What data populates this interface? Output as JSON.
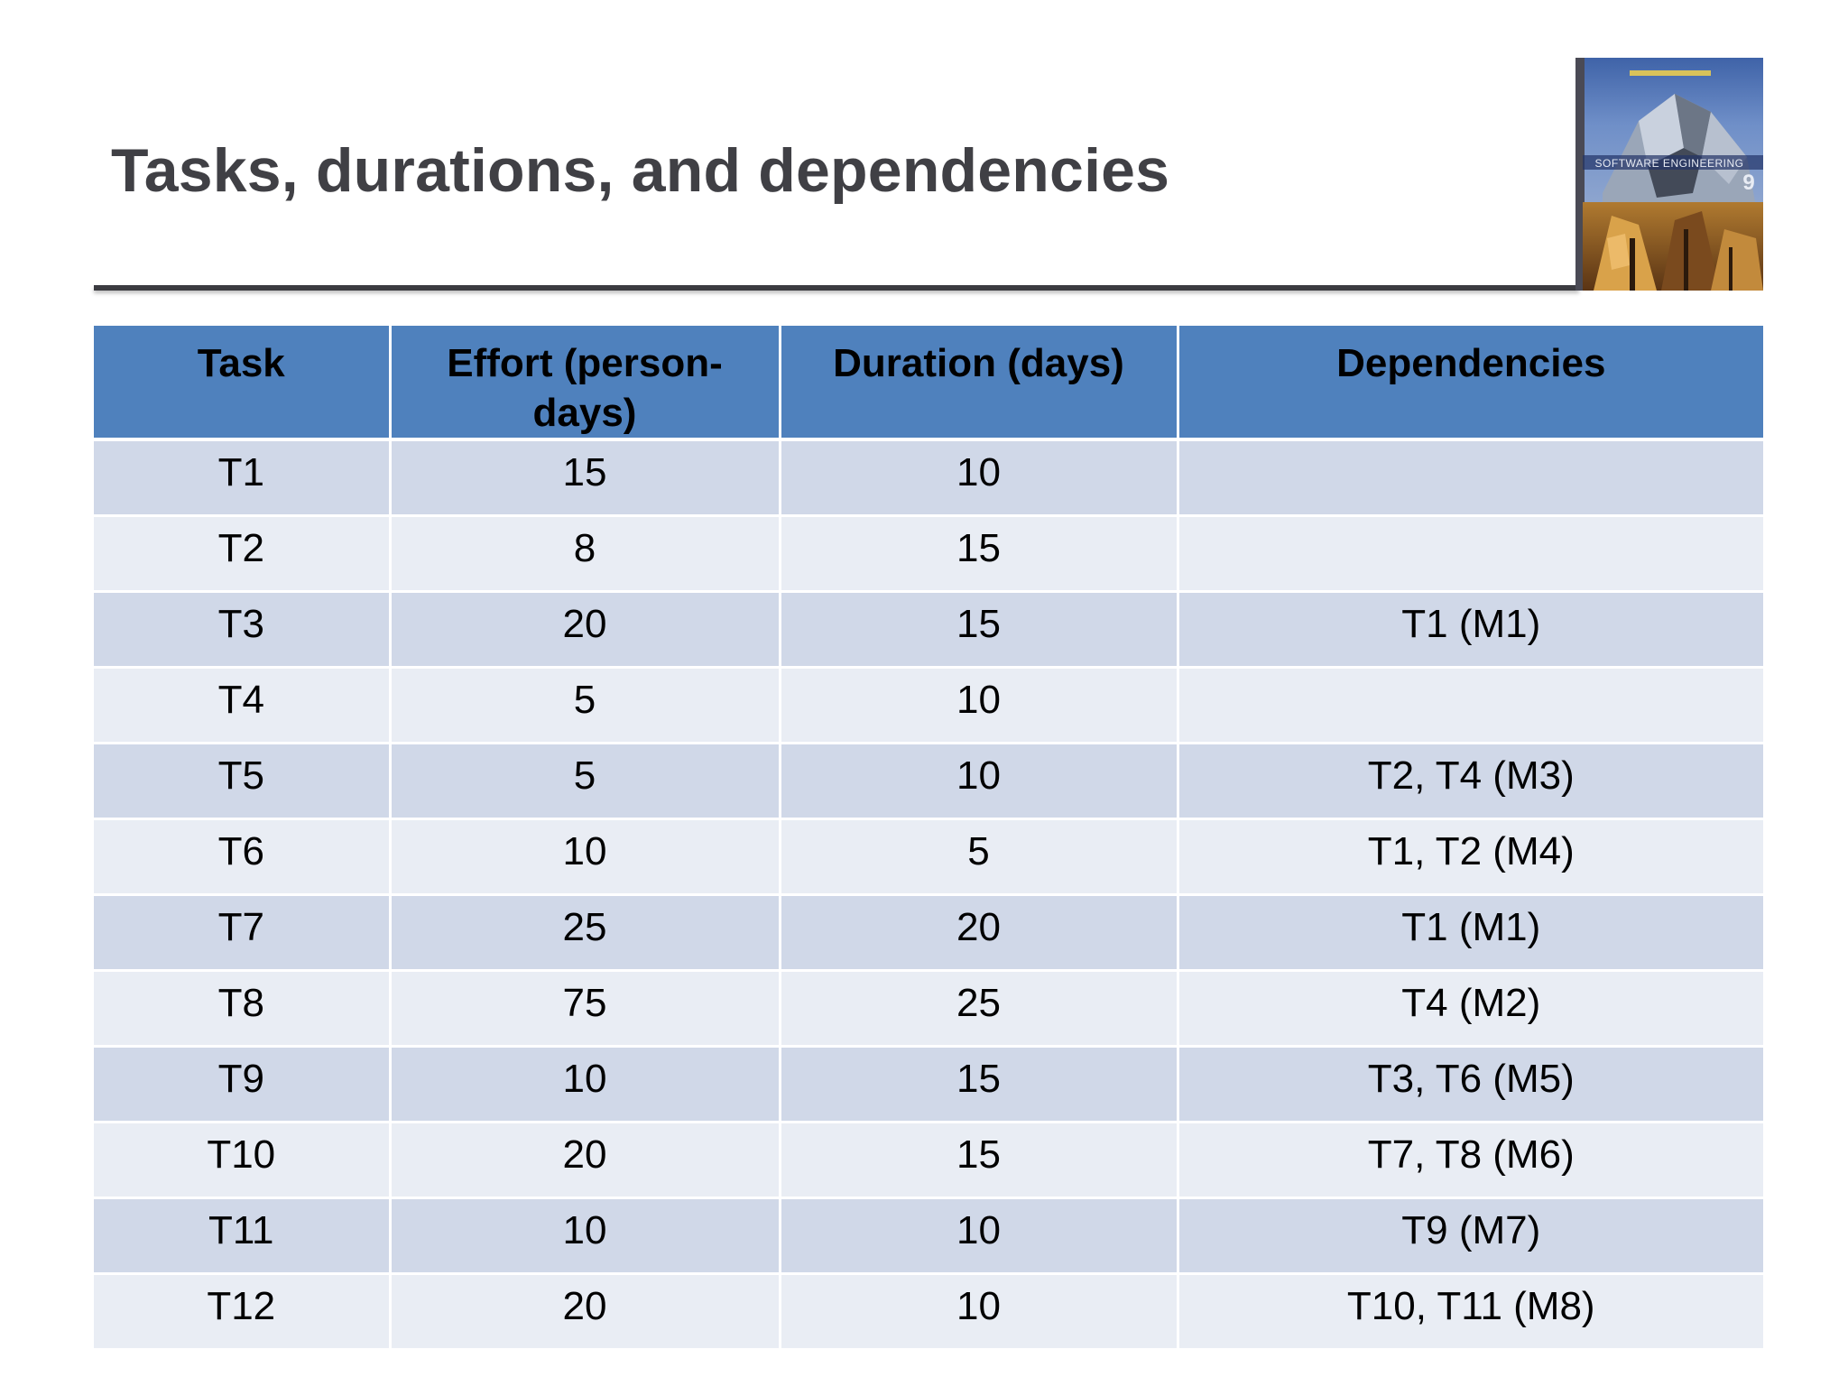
{
  "slide": {
    "title": "Tasks, durations, and dependencies"
  },
  "book_cover": {
    "icon": "book-cover-image",
    "cover_text": "SOFTWARE ENGINEERING",
    "edition": "9"
  },
  "table": {
    "headers": [
      "Task",
      "Effort (person-days)",
      "Duration (days)",
      "Dependencies"
    ],
    "rows": [
      [
        "T1",
        "15",
        "10",
        ""
      ],
      [
        "T2",
        "8",
        "15",
        ""
      ],
      [
        "T3",
        "20",
        "15",
        "T1 (M1)"
      ],
      [
        "T4",
        "5",
        "10",
        ""
      ],
      [
        "T5",
        "5",
        "10",
        "T2, T4 (M3)"
      ],
      [
        "T6",
        "10",
        "5",
        "T1, T2 (M4)"
      ],
      [
        "T7",
        "25",
        "20",
        "T1 (M1)"
      ],
      [
        "T8",
        "75",
        "25",
        "T4 (M2)"
      ],
      [
        "T9",
        "10",
        "15",
        "T3, T6 (M5)"
      ],
      [
        "T10",
        "20",
        "15",
        "T7, T8 (M6)"
      ],
      [
        "T11",
        "10",
        "10",
        "T9 (M7)"
      ],
      [
        "T12",
        "20",
        "10",
        "T10, T11 (M8)"
      ]
    ]
  },
  "colors": {
    "header_bg": "#4f81bd",
    "row_odd_bg": "#d0d8e8",
    "row_even_bg": "#e9edf4",
    "title_color": "#404045"
  }
}
